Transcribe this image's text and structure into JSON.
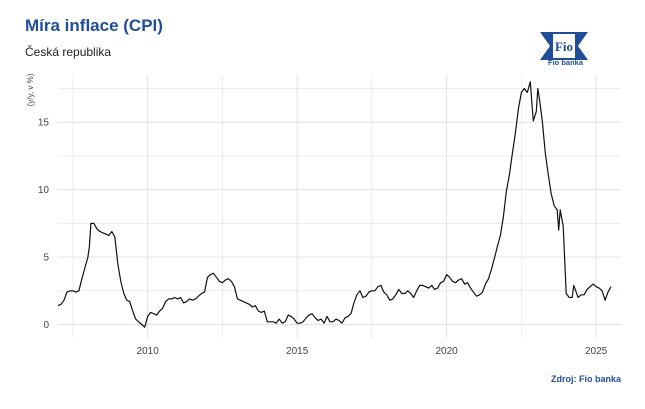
{
  "header": {
    "title": "Míra inflace (CPI)",
    "subtitle": "Česká republika"
  },
  "logo": {
    "mark_text": "Fio",
    "caption": "Fio banka"
  },
  "footer": {
    "source": "Zdroj: Fio banka"
  },
  "colors": {
    "title": "#1f4e96",
    "line": "#111111",
    "grid": "#e2e2e2"
  },
  "chart_data": {
    "type": "line",
    "title": "Míra inflace (CPI)",
    "subtitle": "Česká republika",
    "xlabel": "",
    "ylabel": "(y/y, v %)",
    "xlim": [
      2007,
      2025.8
    ],
    "ylim": [
      -1,
      18.5
    ],
    "x_ticks": [
      2010,
      2015,
      2020,
      2025
    ],
    "y_ticks": [
      0,
      5,
      10,
      15
    ],
    "grid": true,
    "series": [
      {
        "points": [
          [
            2007.0,
            1.4
          ],
          [
            2007.1,
            1.5
          ],
          [
            2007.2,
            1.8
          ],
          [
            2007.3,
            2.4
          ],
          [
            2007.4,
            2.5
          ],
          [
            2007.5,
            2.5
          ],
          [
            2007.6,
            2.4
          ],
          [
            2007.7,
            2.5
          ],
          [
            2007.8,
            3.4
          ],
          [
            2007.9,
            4.2
          ],
          [
            2008.0,
            5.0
          ],
          [
            2008.05,
            5.8
          ],
          [
            2008.1,
            7.5
          ],
          [
            2008.2,
            7.5
          ],
          [
            2008.3,
            7.1
          ],
          [
            2008.4,
            6.9
          ],
          [
            2008.5,
            6.8
          ],
          [
            2008.6,
            6.7
          ],
          [
            2008.7,
            6.6
          ],
          [
            2008.8,
            6.9
          ],
          [
            2008.9,
            6.5
          ],
          [
            2009.0,
            4.5
          ],
          [
            2009.1,
            3.2
          ],
          [
            2009.2,
            2.3
          ],
          [
            2009.3,
            1.8
          ],
          [
            2009.4,
            1.7
          ],
          [
            2009.5,
            1.0
          ],
          [
            2009.6,
            0.4
          ],
          [
            2009.7,
            0.2
          ],
          [
            2009.8,
            0.0
          ],
          [
            2009.9,
            -0.2
          ],
          [
            2010.0,
            0.6
          ],
          [
            2010.1,
            0.9
          ],
          [
            2010.2,
            0.8
          ],
          [
            2010.3,
            0.7
          ],
          [
            2010.4,
            1.0
          ],
          [
            2010.5,
            1.2
          ],
          [
            2010.6,
            1.7
          ],
          [
            2010.7,
            1.9
          ],
          [
            2010.8,
            1.9
          ],
          [
            2010.9,
            2.0
          ],
          [
            2011.0,
            1.9
          ],
          [
            2011.1,
            2.0
          ],
          [
            2011.2,
            1.6
          ],
          [
            2011.3,
            1.7
          ],
          [
            2011.4,
            1.9
          ],
          [
            2011.5,
            1.8
          ],
          [
            2011.6,
            1.9
          ],
          [
            2011.7,
            2.1
          ],
          [
            2011.8,
            2.3
          ],
          [
            2011.9,
            2.4
          ],
          [
            2012.0,
            3.5
          ],
          [
            2012.1,
            3.7
          ],
          [
            2012.2,
            3.8
          ],
          [
            2012.3,
            3.5
          ],
          [
            2012.4,
            3.2
          ],
          [
            2012.5,
            3.1
          ],
          [
            2012.6,
            3.3
          ],
          [
            2012.7,
            3.4
          ],
          [
            2012.8,
            3.2
          ],
          [
            2012.9,
            2.8
          ],
          [
            2013.0,
            1.9
          ],
          [
            2013.1,
            1.8
          ],
          [
            2013.2,
            1.7
          ],
          [
            2013.3,
            1.6
          ],
          [
            2013.4,
            1.5
          ],
          [
            2013.5,
            1.3
          ],
          [
            2013.6,
            1.4
          ],
          [
            2013.7,
            1.0
          ],
          [
            2013.8,
            0.9
          ],
          [
            2013.9,
            1.0
          ],
          [
            2014.0,
            0.2
          ],
          [
            2014.1,
            0.2
          ],
          [
            2014.2,
            0.2
          ],
          [
            2014.3,
            0.1
          ],
          [
            2014.4,
            0.4
          ],
          [
            2014.5,
            0.1
          ],
          [
            2014.6,
            0.2
          ],
          [
            2014.7,
            0.7
          ],
          [
            2014.8,
            0.6
          ],
          [
            2014.9,
            0.4
          ],
          [
            2015.0,
            0.1
          ],
          [
            2015.1,
            0.1
          ],
          [
            2015.2,
            0.2
          ],
          [
            2015.3,
            0.5
          ],
          [
            2015.4,
            0.7
          ],
          [
            2015.5,
            0.8
          ],
          [
            2015.6,
            0.5
          ],
          [
            2015.7,
            0.3
          ],
          [
            2015.8,
            0.4
          ],
          [
            2015.9,
            0.1
          ],
          [
            2016.0,
            0.6
          ],
          [
            2016.1,
            0.2
          ],
          [
            2016.2,
            0.2
          ],
          [
            2016.3,
            0.4
          ],
          [
            2016.4,
            0.3
          ],
          [
            2016.5,
            0.1
          ],
          [
            2016.6,
            0.5
          ],
          [
            2016.7,
            0.6
          ],
          [
            2016.8,
            0.8
          ],
          [
            2016.9,
            1.6
          ],
          [
            2017.0,
            2.2
          ],
          [
            2017.1,
            2.5
          ],
          [
            2017.2,
            2.0
          ],
          [
            2017.3,
            2.1
          ],
          [
            2017.4,
            2.4
          ],
          [
            2017.5,
            2.5
          ],
          [
            2017.6,
            2.5
          ],
          [
            2017.7,
            2.8
          ],
          [
            2017.8,
            2.9
          ],
          [
            2017.9,
            2.4
          ],
          [
            2018.0,
            2.2
          ],
          [
            2018.1,
            1.8
          ],
          [
            2018.2,
            1.9
          ],
          [
            2018.3,
            2.2
          ],
          [
            2018.4,
            2.6
          ],
          [
            2018.5,
            2.3
          ],
          [
            2018.6,
            2.3
          ],
          [
            2018.7,
            2.5
          ],
          [
            2018.8,
            2.3
          ],
          [
            2018.9,
            2.0
          ],
          [
            2019.0,
            2.5
          ],
          [
            2019.1,
            2.9
          ],
          [
            2019.2,
            2.9
          ],
          [
            2019.3,
            2.8
          ],
          [
            2019.4,
            2.7
          ],
          [
            2019.5,
            2.9
          ],
          [
            2019.6,
            2.6
          ],
          [
            2019.7,
            2.7
          ],
          [
            2019.8,
            3.1
          ],
          [
            2019.9,
            3.2
          ],
          [
            2020.0,
            3.7
          ],
          [
            2020.1,
            3.5
          ],
          [
            2020.2,
            3.2
          ],
          [
            2020.3,
            3.1
          ],
          [
            2020.4,
            3.3
          ],
          [
            2020.5,
            3.4
          ],
          [
            2020.6,
            3.0
          ],
          [
            2020.7,
            3.1
          ],
          [
            2020.8,
            2.7
          ],
          [
            2020.9,
            2.4
          ],
          [
            2021.0,
            2.1
          ],
          [
            2021.1,
            2.2
          ],
          [
            2021.2,
            2.4
          ],
          [
            2021.3,
            3.0
          ],
          [
            2021.4,
            3.4
          ],
          [
            2021.5,
            4.1
          ],
          [
            2021.6,
            4.9
          ],
          [
            2021.7,
            5.8
          ],
          [
            2021.8,
            6.6
          ],
          [
            2021.9,
            8.0
          ],
          [
            2022.0,
            9.9
          ],
          [
            2022.1,
            11.1
          ],
          [
            2022.2,
            12.7
          ],
          [
            2022.3,
            14.2
          ],
          [
            2022.4,
            16.0
          ],
          [
            2022.5,
            17.2
          ],
          [
            2022.6,
            17.5
          ],
          [
            2022.7,
            17.2
          ],
          [
            2022.8,
            18.0
          ],
          [
            2022.85,
            16.5
          ],
          [
            2022.9,
            15.1
          ],
          [
            2023.0,
            15.8
          ],
          [
            2023.05,
            17.5
          ],
          [
            2023.1,
            16.8
          ],
          [
            2023.2,
            15.1
          ],
          [
            2023.3,
            12.7
          ],
          [
            2023.4,
            11.1
          ],
          [
            2023.5,
            9.7
          ],
          [
            2023.6,
            8.8
          ],
          [
            2023.7,
            8.5
          ],
          [
            2023.75,
            7.0
          ],
          [
            2023.8,
            8.5
          ],
          [
            2023.9,
            7.3
          ],
          [
            2024.0,
            2.3
          ],
          [
            2024.1,
            2.0
          ],
          [
            2024.2,
            2.0
          ],
          [
            2024.25,
            2.9
          ],
          [
            2024.3,
            2.6
          ],
          [
            2024.4,
            2.0
          ],
          [
            2024.5,
            2.2
          ],
          [
            2024.6,
            2.2
          ],
          [
            2024.7,
            2.6
          ],
          [
            2024.8,
            2.8
          ],
          [
            2024.9,
            3.0
          ],
          [
            2025.0,
            2.8
          ],
          [
            2025.1,
            2.7
          ],
          [
            2025.2,
            2.5
          ],
          [
            2025.3,
            1.8
          ],
          [
            2025.4,
            2.4
          ],
          [
            2025.5,
            2.8
          ]
        ]
      }
    ]
  }
}
